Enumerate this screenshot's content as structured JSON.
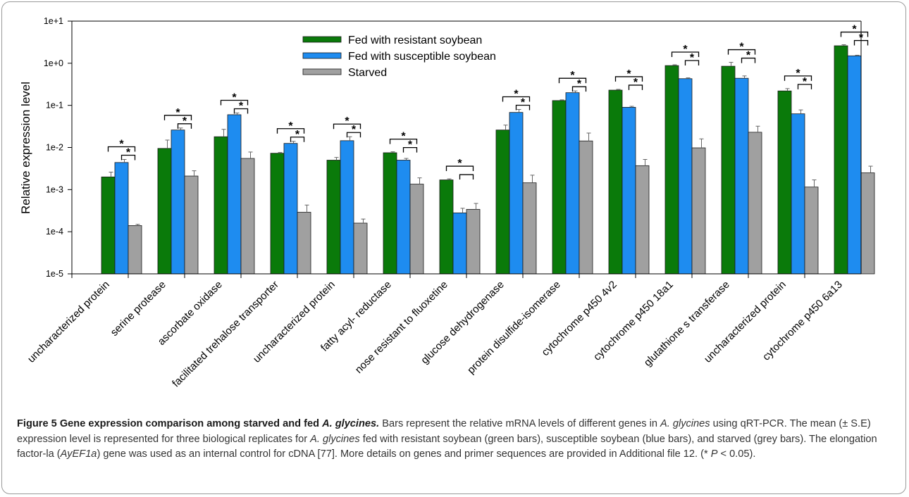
{
  "chart_data": {
    "type": "bar",
    "scale": "log",
    "ylabel": "Relative expression level",
    "ylim": [
      1e-05,
      10
    ],
    "y_ticks": [
      1e-05,
      0.0001,
      0.001,
      0.01,
      0.1,
      1,
      10
    ],
    "y_tick_labels": [
      "1e-5",
      "1e-4",
      "1e-3",
      "1e-2",
      "1e-1",
      "1e+0",
      "1e+1"
    ],
    "grid": false,
    "legend_position": "top-center",
    "categories": [
      "uncharacterized protein",
      "serine protease",
      "ascorbate oxidase",
      "facilitated trehalose transporter",
      "uncharacterized protein",
      "fatty acyl- reductase",
      "nose resistant to fluoxetine",
      "glucose dehydrogenase",
      "protein disulfide-isomerase",
      "cytochrome p450 4v2",
      "cytochrome p450 18a1",
      "glutathione s transferase",
      "uncharacterized protein",
      "cytochrome p450 6a13"
    ],
    "series": [
      {
        "name": "Fed with resistant soybean",
        "color": "#0a7a0a",
        "values": [
          0.002,
          0.0095,
          0.018,
          0.0073,
          0.005,
          0.0075,
          0.0017,
          0.026,
          0.13,
          0.23,
          0.88,
          0.85,
          0.22,
          2.6
        ],
        "errors": [
          0.0026,
          0.015,
          0.027,
          0.0076,
          0.0058,
          0.0079,
          0.0018,
          0.034,
          0.135,
          0.24,
          0.92,
          1.05,
          0.25,
          2.75
        ]
      },
      {
        "name": "Fed with susceptible soybean",
        "color": "#1e8cf0",
        "values": [
          0.0044,
          0.026,
          0.06,
          0.0125,
          0.0145,
          0.005,
          0.00028,
          0.068,
          0.2,
          0.09,
          0.43,
          0.44,
          0.063,
          1.5
        ],
        "errors": [
          0.0052,
          0.029,
          0.066,
          0.014,
          0.018,
          0.0055,
          0.00036,
          0.08,
          0.22,
          0.095,
          0.45,
          0.5,
          0.078,
          1.55
        ]
      },
      {
        "name": "Starved",
        "color": "#a0a0a0",
        "values": [
          0.00014,
          0.0021,
          0.0055,
          0.00029,
          0.00016,
          0.00135,
          0.00034,
          0.00145,
          0.0143,
          0.0037,
          0.0098,
          0.023,
          0.00115,
          0.0025
        ],
        "errors": [
          0.00015,
          0.0028,
          0.0078,
          0.00043,
          0.0002,
          0.0019,
          0.00047,
          0.0022,
          0.022,
          0.0052,
          0.016,
          0.032,
          0.0017,
          0.0036
        ]
      }
    ],
    "significance": {
      "marker": "*",
      "comparisons": [
        [
          true,
          true
        ],
        [
          true,
          true
        ],
        [
          true,
          true
        ],
        [
          true,
          true
        ],
        [
          true,
          true
        ],
        [
          true,
          true
        ],
        [
          true,
          false
        ],
        [
          true,
          true
        ],
        [
          true,
          true
        ],
        [
          true,
          true
        ],
        [
          true,
          true
        ],
        [
          true,
          true
        ],
        [
          true,
          true
        ],
        [
          true,
          true
        ]
      ]
    }
  },
  "caption": {
    "label": "Figure 5",
    "title_part1": "Gene expression comparison among starved and fed ",
    "title_species": "A. glycines.",
    "t1": " Bars represent the relative mRNA levels of different genes in ",
    "t2": "A. glycines",
    "t3": " using qRT-PCR. The mean (± S.E) expression level is represented for three biological replicates for ",
    "t4": "A. glycines",
    "t5": " fed with resistant soybean (green bars), susceptible soybean (blue bars), and starved (grey bars). The elongation factor-la (",
    "t6": "AyEF1a",
    "t7": ") gene was used as an internal control for cDNA [77]. More details on genes and primer sequences are provided in Additional file 12. (* ",
    "t8": "P",
    "t9": " < 0.05)."
  }
}
